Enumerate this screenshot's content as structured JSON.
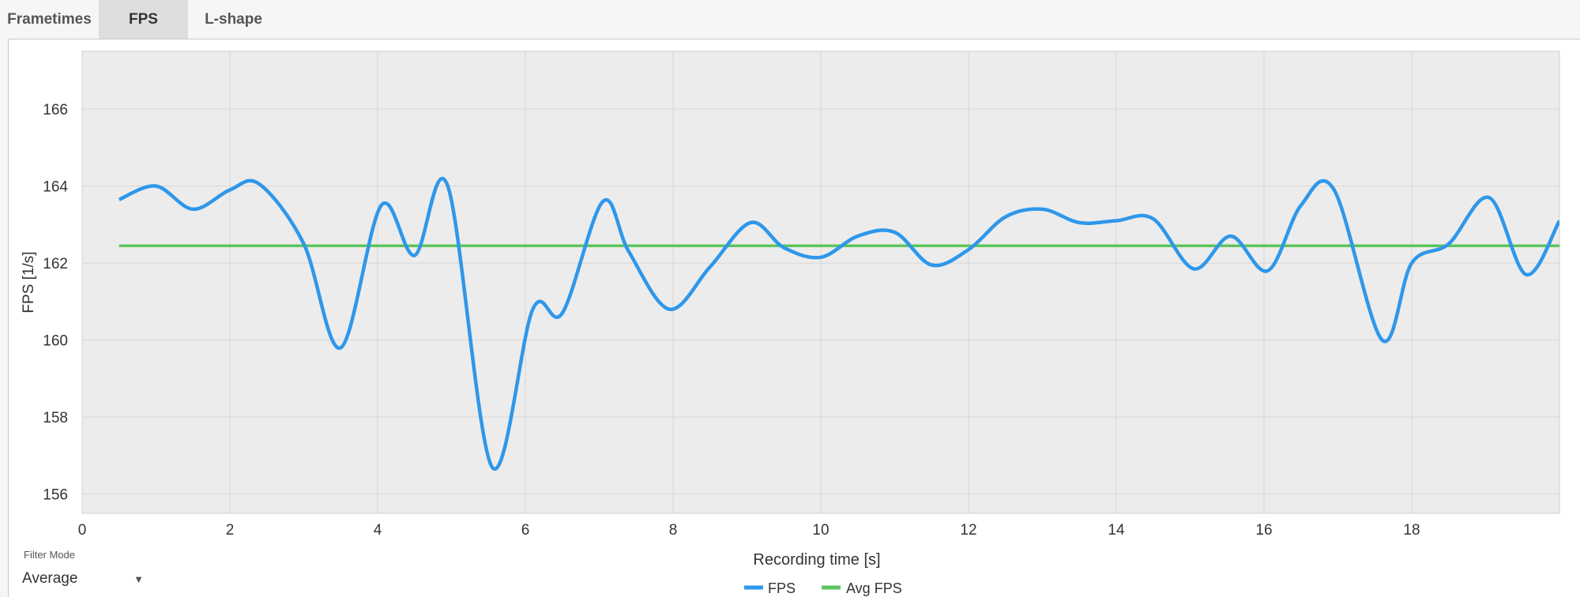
{
  "tabs": [
    {
      "label": "Frametimes"
    },
    {
      "label": "FPS"
    },
    {
      "label": "L-shape"
    }
  ],
  "active_tab": "FPS",
  "filter": {
    "label": "Filter Mode",
    "value": "Average"
  },
  "colors": {
    "fps": "#2e97ea",
    "avg": "#5cc55c",
    "plot_bg": "#ececec",
    "grid": "#d6d6d6"
  },
  "chart_data": {
    "type": "line",
    "xlabel": "Recording time [s]",
    "ylabel": "FPS [1/s]",
    "xlim": [
      0,
      20
    ],
    "ylim": [
      155.5,
      167.5
    ],
    "xticks": [
      0,
      2,
      4,
      6,
      8,
      10,
      12,
      14,
      16,
      18
    ],
    "yticks": [
      156,
      158,
      160,
      162,
      164,
      166
    ],
    "grid": true,
    "legend_position": "bottom-center",
    "series": [
      {
        "name": "FPS",
        "x": [
          0.5,
          1.0,
          1.5,
          2.0,
          2.4,
          3.0,
          3.5,
          4.05,
          4.5,
          4.95,
          5.55,
          6.1,
          6.5,
          7.05,
          7.4,
          7.95,
          8.5,
          9.05,
          9.5,
          10.0,
          10.5,
          11.0,
          11.5,
          12.0,
          12.5,
          13.0,
          13.5,
          14.0,
          14.5,
          15.05,
          15.55,
          16.05,
          16.5,
          16.95,
          17.6,
          18.0,
          18.5,
          19.05,
          19.55,
          20.0
        ],
        "values": [
          163.65,
          164.0,
          163.4,
          163.9,
          164.05,
          162.5,
          159.8,
          163.5,
          162.2,
          164.0,
          156.7,
          160.8,
          160.7,
          163.6,
          162.3,
          160.8,
          161.9,
          163.05,
          162.4,
          162.15,
          162.7,
          162.8,
          161.95,
          162.35,
          163.2,
          163.4,
          163.05,
          163.1,
          163.15,
          161.85,
          162.7,
          161.8,
          163.5,
          163.9,
          160.0,
          162.0,
          162.5,
          163.7,
          161.7,
          163.1
        ]
      },
      {
        "name": "Avg FPS",
        "x": [
          0.5,
          20.0
        ],
        "values": [
          162.45,
          162.45
        ]
      }
    ]
  }
}
